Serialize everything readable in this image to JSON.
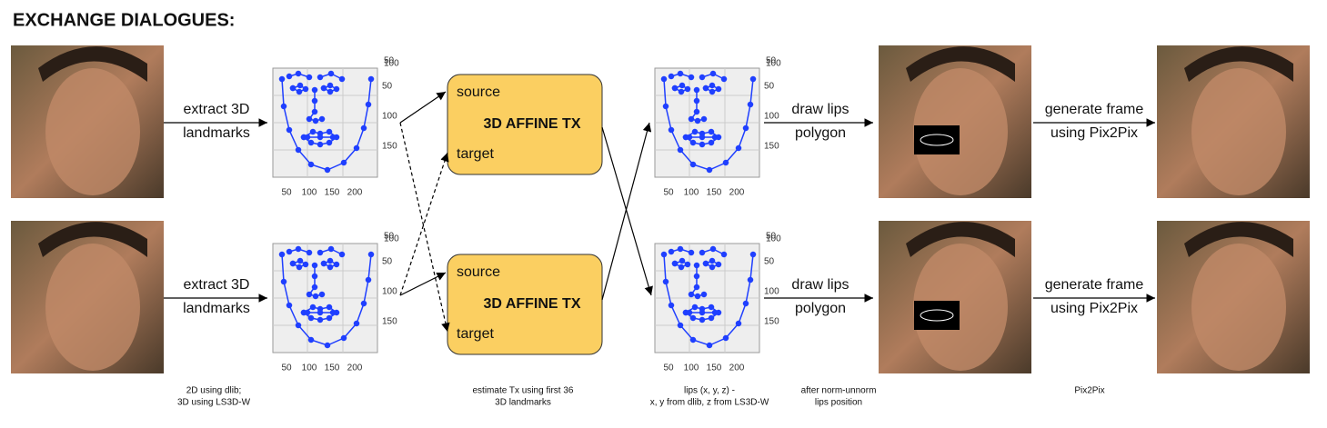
{
  "title": "EXCHANGE DIALOGUES:",
  "rows": [
    {
      "extract": [
        "extract 3D",
        "landmarks"
      ],
      "affine": {
        "source": "source",
        "label": "3D AFFINE TX",
        "target": "target"
      },
      "draw": [
        "draw lips",
        "polygon"
      ],
      "generate": [
        "generate frame",
        "using Pix2Pix"
      ]
    },
    {
      "extract": [
        "extract 3D",
        "landmarks"
      ],
      "affine": {
        "source": "source",
        "label": "3D AFFINE TX",
        "target": "target"
      },
      "draw": [
        "draw lips",
        "polygon"
      ],
      "generate": [
        "generate frame",
        "using Pix2Pix"
      ]
    }
  ],
  "plots": [
    {
      "xticks": [
        50,
        100,
        150,
        200
      ],
      "yticks": [
        50,
        100,
        150
      ],
      "zticks": [
        50,
        100
      ]
    },
    {
      "xticks": [
        50,
        100,
        150,
        200
      ],
      "yticks": [
        50,
        100,
        150
      ],
      "zticks": [
        50,
        100
      ]
    },
    {
      "xticks": [
        50,
        100,
        150,
        200
      ],
      "yticks": [
        50,
        100,
        150
      ],
      "zticks": [
        50,
        100
      ]
    },
    {
      "xticks": [
        50,
        100,
        150,
        200
      ],
      "yticks": [
        50,
        100,
        150
      ],
      "zticks": [
        50,
        100
      ]
    }
  ],
  "captions": [
    [
      "2D using dlib;",
      "3D using LS3D-W"
    ],
    [
      "estimate Tx using first 36",
      "3D landmarks"
    ],
    [
      "lips (x, y, z) -",
      "x, y from dlib, z from LS3D-W"
    ],
    [
      "after norm-unnorm",
      "lips position"
    ],
    [
      "Pix2Pix"
    ]
  ]
}
